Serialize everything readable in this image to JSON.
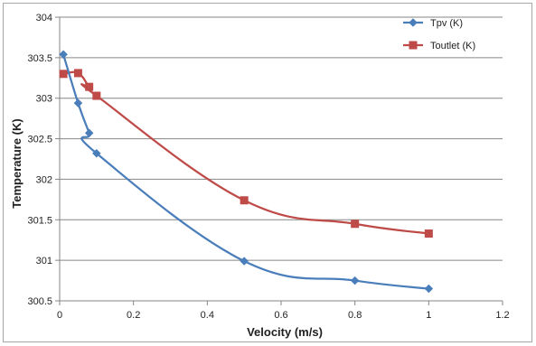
{
  "chart_data": {
    "type": "line",
    "title": "",
    "xlabel": "Velocity (m/s)",
    "ylabel": "Temperature (K)",
    "xlim": [
      0,
      1.2
    ],
    "ylim": [
      300.5,
      304
    ],
    "x_ticks": [
      0,
      0.2,
      0.4,
      0.6,
      0.8,
      1,
      1.2
    ],
    "x_tick_labels": [
      "0",
      "0.2",
      "0.4",
      "0.6",
      "0.8",
      "1",
      "1.2"
    ],
    "y_ticks": [
      300.5,
      301,
      301.5,
      302,
      302.5,
      303,
      303.5,
      304
    ],
    "y_tick_labels": [
      "300.5",
      "301",
      "301.5",
      "302",
      "302.5",
      "303",
      "303.5",
      "304"
    ],
    "grid": "horizontal",
    "legend_position": "top-right",
    "series": [
      {
        "name": "Tpv (K)",
        "color": "#4a7ebb",
        "marker": "diamond",
        "x": [
          0.01,
          0.05,
          0.08,
          0.1,
          0.5,
          0.8,
          1.0
        ],
        "y": [
          303.54,
          302.94,
          302.57,
          302.32,
          300.99,
          300.75,
          300.65
        ]
      },
      {
        "name": "Toutlet (K)",
        "color": "#be4b48",
        "marker": "square",
        "x": [
          0.01,
          0.05,
          0.08,
          0.1,
          0.5,
          0.8,
          1.0
        ],
        "y": [
          303.3,
          303.31,
          303.14,
          303.03,
          301.74,
          301.45,
          301.33
        ]
      }
    ]
  }
}
